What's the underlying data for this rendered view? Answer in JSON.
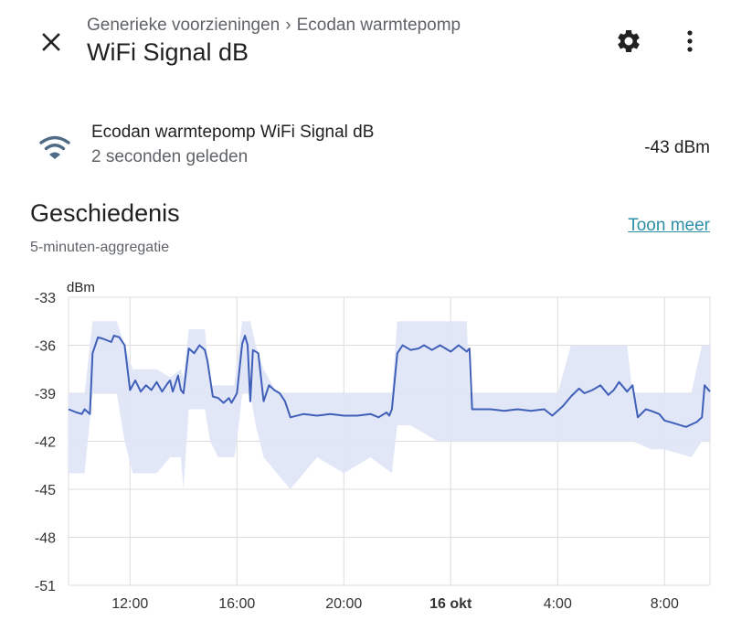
{
  "header": {
    "breadcrumb_parent": "Generieke voorzieningen",
    "breadcrumb_separator": "›",
    "breadcrumb_current": "Ecodan warmtepomp",
    "title": "WiFi Signal dB",
    "icons": {
      "close": "close-icon",
      "settings": "gear-icon",
      "menu": "more-vertical-icon"
    }
  },
  "entity": {
    "icon": "wifi-icon",
    "name": "Ecodan warmtepomp WiFi Signal dB",
    "last_changed": "2 seconden geleden",
    "value": "-43 dBm"
  },
  "history": {
    "title": "Geschiedenis",
    "show_more": "Toon meer",
    "aggregation": "5-minuten-aggregatie"
  },
  "colors": {
    "line": "#3f5fb8",
    "band": "#dfe4f7",
    "grid": "#dcdcdc",
    "link": "#2e8fa6",
    "icon": "#4f6b86"
  },
  "chart_data": {
    "type": "line",
    "ylabel": "dBm",
    "ylim": [
      -51,
      -33
    ],
    "y_ticks": [
      "-33",
      "-36",
      "-39",
      "-42",
      "-45",
      "-48",
      "-51"
    ],
    "x_range_hours": [
      9.7,
      33.7
    ],
    "x_ticks": [
      {
        "label": "12:00",
        "hour": 12,
        "bold": false
      },
      {
        "label": "16:00",
        "hour": 16,
        "bold": false
      },
      {
        "label": "20:00",
        "hour": 20,
        "bold": false
      },
      {
        "label": "16 okt",
        "hour": 24,
        "bold": true
      },
      {
        "label": "4:00",
        "hour": 28,
        "bold": false
      },
      {
        "label": "8:00",
        "hour": 32,
        "bold": false
      }
    ],
    "series": [
      {
        "type": "mean",
        "x": [
          9.7,
          10.0,
          10.2,
          10.3,
          10.5,
          10.6,
          10.8,
          11.0,
          11.3,
          11.4,
          11.6,
          11.8,
          12.0,
          12.2,
          12.4,
          12.6,
          12.8,
          13.0,
          13.2,
          13.4,
          13.5,
          13.6,
          13.8,
          13.9,
          14.0,
          14.2,
          14.4,
          14.6,
          14.8,
          14.9,
          15.1,
          15.3,
          15.5,
          15.7,
          15.8,
          15.9,
          16.0,
          16.2,
          16.3,
          16.4,
          16.5,
          16.6,
          16.8,
          17.0,
          17.2,
          17.4,
          17.6,
          17.8,
          18.0,
          18.5,
          19.0,
          19.5,
          20.0,
          20.5,
          21.0,
          21.3,
          21.6,
          21.7,
          21.8,
          22.0,
          22.2,
          22.5,
          22.8,
          23.0,
          23.3,
          23.6,
          24.0,
          24.3,
          24.6,
          24.7,
          24.8,
          25.0,
          25.5,
          26.0,
          26.5,
          27.0,
          27.5,
          27.8,
          28.0,
          28.2,
          28.5,
          28.8,
          29.0,
          29.3,
          29.6,
          29.9,
          30.1,
          30.3,
          30.6,
          30.8,
          31.0,
          31.3,
          31.5,
          31.8,
          32.0,
          32.4,
          32.8,
          33.2,
          33.4,
          33.5,
          33.7
        ],
        "y": [
          -40.0,
          -40.2,
          -40.3,
          -40.0,
          -40.3,
          -36.5,
          -35.5,
          -35.6,
          -35.8,
          -35.4,
          -35.5,
          -36.0,
          -38.8,
          -38.2,
          -38.9,
          -38.5,
          -38.8,
          -38.3,
          -38.9,
          -38.4,
          -38.2,
          -38.9,
          -37.9,
          -38.8,
          -39.0,
          -36.2,
          -36.5,
          -36.0,
          -36.3,
          -37.0,
          -39.2,
          -39.3,
          -39.6,
          -39.3,
          -39.6,
          -39.3,
          -39.0,
          -35.9,
          -35.4,
          -36.0,
          -39.5,
          -36.3,
          -36.5,
          -39.5,
          -38.5,
          -38.8,
          -39.0,
          -39.5,
          -40.5,
          -40.3,
          -40.4,
          -40.3,
          -40.4,
          -40.4,
          -40.3,
          -40.5,
          -40.2,
          -40.4,
          -40.0,
          -36.5,
          -36.0,
          -36.3,
          -36.2,
          -36.0,
          -36.3,
          -36.0,
          -36.4,
          -36.0,
          -36.4,
          -36.2,
          -40.0,
          -40.0,
          -40.0,
          -40.1,
          -40.0,
          -40.1,
          -40.0,
          -40.4,
          -40.1,
          -39.8,
          -39.2,
          -38.7,
          -39.0,
          -38.8,
          -38.5,
          -39.1,
          -38.8,
          -38.3,
          -38.9,
          -38.5,
          -40.5,
          -40.0,
          -40.1,
          -40.3,
          -40.7,
          -40.9,
          -41.1,
          -40.8,
          -40.5,
          -38.5,
          -38.9
        ]
      },
      {
        "type": "range",
        "x": [
          9.7,
          10.3,
          10.6,
          11.5,
          11.8,
          12.1,
          13.0,
          13.5,
          13.9,
          14.0,
          14.2,
          14.8,
          15.0,
          15.3,
          15.9,
          16.0,
          16.2,
          16.5,
          16.7,
          17.0,
          17.5,
          18.0,
          19.0,
          20.0,
          21.0,
          21.8,
          22.0,
          22.5,
          23.5,
          24.6,
          24.7,
          25.0,
          26.0,
          27.0,
          27.8,
          28.0,
          28.5,
          29.0,
          30.0,
          30.6,
          30.8,
          31.5,
          32.0,
          33.0,
          33.4,
          33.7
        ],
        "high": [
          -39.0,
          -39.0,
          -34.5,
          -34.5,
          -36.0,
          -37.5,
          -37.5,
          -38.0,
          -37.5,
          -38.0,
          -35.0,
          -35.0,
          -38.5,
          -38.5,
          -38.5,
          -37.0,
          -34.5,
          -34.5,
          -36.0,
          -37.5,
          -39.0,
          -39.0,
          -39.0,
          -39.0,
          -39.0,
          -39.0,
          -34.5,
          -34.5,
          -34.5,
          -34.5,
          -39.0,
          -39.0,
          -39.0,
          -39.0,
          -39.0,
          -39.0,
          -36.0,
          -36.0,
          -36.0,
          -36.0,
          -39.0,
          -39.0,
          -39.0,
          -39.0,
          -36.0,
          -36.0
        ],
        "low": [
          -44.0,
          -44.0,
          -39.0,
          -39.0,
          -42.0,
          -44.0,
          -44.0,
          -43.0,
          -43.0,
          -45.0,
          -40.0,
          -40.0,
          -42.0,
          -43.0,
          -43.0,
          -42.0,
          -39.0,
          -39.0,
          -41.0,
          -43.0,
          -44.0,
          -45.0,
          -43.0,
          -44.0,
          -43.0,
          -44.0,
          -41.0,
          -41.0,
          -42.0,
          -42.0,
          -42.0,
          -42.0,
          -42.0,
          -42.0,
          -42.0,
          -42.0,
          -42.0,
          -42.0,
          -42.0,
          -42.0,
          -42.0,
          -42.5,
          -42.5,
          -43.0,
          -42.0,
          -42.0
        ]
      }
    ]
  }
}
